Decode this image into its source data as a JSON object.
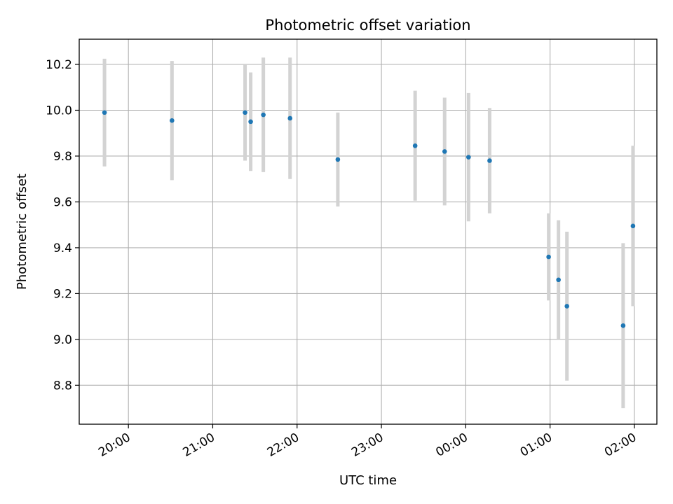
{
  "chart_data": {
    "type": "scatter",
    "title": "Photometric offset variation",
    "xlabel": "UTC time",
    "ylabel": "Photometric offset",
    "x_axis": {
      "kind": "time",
      "ticks": [
        "20:00",
        "21:00",
        "22:00",
        "23:00",
        "00:00",
        "01:00",
        "02:00"
      ]
    },
    "xlim": [
      "19:25",
      "02:16"
    ],
    "ylim": [
      8.63,
      10.31
    ],
    "y_ticks": [
      8.8,
      9.0,
      9.2,
      9.4,
      9.6,
      9.8,
      10.0,
      10.2
    ],
    "grid": true,
    "colors": {
      "points": "#1f77b4",
      "error_bars": "#d3d3d3",
      "grid": "#b0b0b0"
    },
    "series": [
      {
        "points": [
          {
            "time": "19:43",
            "y": 9.99,
            "err": 0.235
          },
          {
            "time": "20:31",
            "y": 9.955,
            "err": 0.26
          },
          {
            "time": "21:23",
            "y": 9.99,
            "err": 0.21
          },
          {
            "time": "21:27",
            "y": 9.95,
            "err": 0.215
          },
          {
            "time": "21:36",
            "y": 9.98,
            "err": 0.25
          },
          {
            "time": "21:55",
            "y": 9.965,
            "err": 0.265
          },
          {
            "time": "22:29",
            "y": 9.785,
            "err": 0.205
          },
          {
            "time": "23:24",
            "y": 9.845,
            "err": 0.24
          },
          {
            "time": "23:45",
            "y": 9.82,
            "err": 0.235
          },
          {
            "time": "00:02",
            "y": 9.795,
            "err": 0.28
          },
          {
            "time": "00:17",
            "y": 9.78,
            "err": 0.23
          },
          {
            "time": "00:59",
            "y": 9.36,
            "err": 0.19
          },
          {
            "time": "01:06",
            "y": 9.26,
            "err": 0.26
          },
          {
            "time": "01:12",
            "y": 9.145,
            "err": 0.325
          },
          {
            "time": "01:52",
            "y": 9.06,
            "err": 0.36
          },
          {
            "time": "01:59",
            "y": 9.495,
            "err": 0.35
          }
        ]
      }
    ]
  }
}
